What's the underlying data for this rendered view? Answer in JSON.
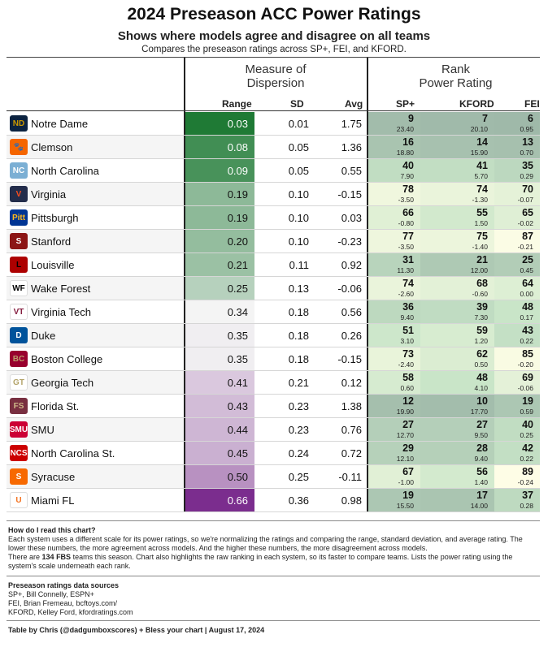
{
  "title": "2024 Preseason ACC Power Ratings",
  "subtitle": "Shows where models agree and disagree on all teams",
  "description": "Compares the preseason ratings across SP+, FEI, and KFORD.",
  "group_headers": {
    "dispersion_line1": "Measure of",
    "dispersion_line2": "Dispersion",
    "rank_line1": "Rank",
    "rank_line2": "Power Rating"
  },
  "columns": {
    "range": "Range",
    "sd": "SD",
    "avg": "Avg",
    "sp": "SP+",
    "kford": "KFORD",
    "fei": "FEI"
  },
  "chart_data": {
    "type": "table",
    "colors": {
      "range_low": "#1f7a35",
      "range_mid": "#f4f4f4",
      "range_high": "#7b2d8e",
      "rank_top": "#9fb9a9",
      "rank_bottom": "#fefde6"
    },
    "rows": [
      {
        "team": "Notre Dame",
        "logo": "ND",
        "logo_color": "#0c2340",
        "logo_text_color": "#c99700",
        "range": "0.03",
        "sd": "0.01",
        "avg": "1.75",
        "sp_rank": "9",
        "sp_rating": "23.40",
        "kford_rank": "7",
        "kford_rating": "20.10",
        "fei_rank": "6",
        "fei_rating": "0.95"
      },
      {
        "team": "Clemson",
        "logo": "🐾",
        "logo_color": "#f56600",
        "logo_text_color": "#ffffff",
        "range": "0.08",
        "sd": "0.05",
        "avg": "1.36",
        "sp_rank": "16",
        "sp_rating": "18.80",
        "kford_rank": "14",
        "kford_rating": "15.90",
        "fei_rank": "13",
        "fei_rating": "0.70"
      },
      {
        "team": "North Carolina",
        "logo": "NC",
        "logo_color": "#7bafd4",
        "logo_text_color": "#ffffff",
        "range": "0.09",
        "sd": "0.05",
        "avg": "0.55",
        "sp_rank": "40",
        "sp_rating": "7.90",
        "kford_rank": "41",
        "kford_rating": "5.70",
        "fei_rank": "35",
        "fei_rating": "0.29"
      },
      {
        "team": "Virginia",
        "logo": "V",
        "logo_color": "#232d4b",
        "logo_text_color": "#f84c1e",
        "range": "0.19",
        "sd": "0.10",
        "avg": "-0.15",
        "sp_rank": "78",
        "sp_rating": "-3.50",
        "kford_rank": "74",
        "kford_rating": "-1.30",
        "fei_rank": "70",
        "fei_rating": "-0.07"
      },
      {
        "team": "Pittsburgh",
        "logo": "Pitt",
        "logo_color": "#003594",
        "logo_text_color": "#ffb81c",
        "range": "0.19",
        "sd": "0.10",
        "avg": "0.03",
        "sp_rank": "66",
        "sp_rating": "-0.80",
        "kford_rank": "55",
        "kford_rating": "1.50",
        "fei_rank": "65",
        "fei_rating": "-0.02"
      },
      {
        "team": "Stanford",
        "logo": "S",
        "logo_color": "#8c1515",
        "logo_text_color": "#ffffff",
        "range": "0.20",
        "sd": "0.10",
        "avg": "-0.23",
        "sp_rank": "77",
        "sp_rating": "-3.50",
        "kford_rank": "75",
        "kford_rating": "-1.40",
        "fei_rank": "87",
        "fei_rating": "-0.21"
      },
      {
        "team": "Louisville",
        "logo": "L",
        "logo_color": "#ad0000",
        "logo_text_color": "#000000",
        "range": "0.21",
        "sd": "0.11",
        "avg": "0.92",
        "sp_rank": "31",
        "sp_rating": "11.30",
        "kford_rank": "21",
        "kford_rating": "12.00",
        "fei_rank": "25",
        "fei_rating": "0.45"
      },
      {
        "team": "Wake Forest",
        "logo": "WF",
        "logo_color": "#ffffff",
        "logo_text_color": "#000000",
        "range": "0.25",
        "sd": "0.13",
        "avg": "-0.06",
        "sp_rank": "74",
        "sp_rating": "-2.60",
        "kford_rank": "68",
        "kford_rating": "-0.60",
        "fei_rank": "64",
        "fei_rating": "0.00"
      },
      {
        "team": "Virginia Tech",
        "logo": "VT",
        "logo_color": "#ffffff",
        "logo_text_color": "#861f41",
        "range": "0.34",
        "sd": "0.18",
        "avg": "0.56",
        "sp_rank": "36",
        "sp_rating": "9.40",
        "kford_rank": "39",
        "kford_rating": "7.30",
        "fei_rank": "48",
        "fei_rating": "0.17"
      },
      {
        "team": "Duke",
        "logo": "D",
        "logo_color": "#00539b",
        "logo_text_color": "#ffffff",
        "range": "0.35",
        "sd": "0.18",
        "avg": "0.26",
        "sp_rank": "51",
        "sp_rating": "3.10",
        "kford_rank": "59",
        "kford_rating": "1.20",
        "fei_rank": "43",
        "fei_rating": "0.22"
      },
      {
        "team": "Boston College",
        "logo": "BC",
        "logo_color": "#98002e",
        "logo_text_color": "#bc9b6a",
        "range": "0.35",
        "sd": "0.18",
        "avg": "-0.15",
        "sp_rank": "73",
        "sp_rating": "-2.40",
        "kford_rank": "62",
        "kford_rating": "0.50",
        "fei_rank": "85",
        "fei_rating": "-0.20"
      },
      {
        "team": "Georgia Tech",
        "logo": "GT",
        "logo_color": "#ffffff",
        "logo_text_color": "#b3a369",
        "range": "0.41",
        "sd": "0.21",
        "avg": "0.12",
        "sp_rank": "58",
        "sp_rating": "0.60",
        "kford_rank": "48",
        "kford_rating": "4.10",
        "fei_rank": "69",
        "fei_rating": "-0.06"
      },
      {
        "team": "Florida St.",
        "logo": "FS",
        "logo_color": "#782f40",
        "logo_text_color": "#ceb888",
        "range": "0.43",
        "sd": "0.23",
        "avg": "1.38",
        "sp_rank": "12",
        "sp_rating": "19.90",
        "kford_rank": "10",
        "kford_rating": "17.70",
        "fei_rank": "19",
        "fei_rating": "0.59"
      },
      {
        "team": "SMU",
        "logo": "SMU",
        "logo_color": "#cc0035",
        "logo_text_color": "#ffffff",
        "range": "0.44",
        "sd": "0.23",
        "avg": "0.76",
        "sp_rank": "27",
        "sp_rating": "12.70",
        "kford_rank": "27",
        "kford_rating": "9.50",
        "fei_rank": "40",
        "fei_rating": "0.25"
      },
      {
        "team": "North Carolina St.",
        "logo": "NCS",
        "logo_color": "#cc0000",
        "logo_text_color": "#ffffff",
        "range": "0.45",
        "sd": "0.24",
        "avg": "0.72",
        "sp_rank": "29",
        "sp_rating": "12.10",
        "kford_rank": "28",
        "kford_rating": "9.40",
        "fei_rank": "42",
        "fei_rating": "0.22"
      },
      {
        "team": "Syracuse",
        "logo": "S",
        "logo_color": "#f76900",
        "logo_text_color": "#ffffff",
        "range": "0.50",
        "sd": "0.25",
        "avg": "-0.11",
        "sp_rank": "67",
        "sp_rating": "-1.00",
        "kford_rank": "56",
        "kford_rating": "1.40",
        "fei_rank": "89",
        "fei_rating": "-0.24"
      },
      {
        "team": "Miami FL",
        "logo": "U",
        "logo_color": "#ffffff",
        "logo_text_color": "#f47321",
        "range": "0.66",
        "sd": "0.36",
        "avg": "0.98",
        "sp_rank": "19",
        "sp_rating": "15.50",
        "kford_rank": "17",
        "kford_rating": "14.00",
        "fei_rank": "37",
        "fei_rating": "0.28"
      }
    ]
  },
  "notes": {
    "how_head": "How do I read this chart?",
    "how_text": "Each system uses a different scale for its power ratings, so we're normalizing the ratings and comparing the range, standard deviation, and average rating. The lower these numbers, the more agreement across models. And the higher these numbers, the more disagreement across models.",
    "there_are": "There are",
    "fbs_count": "134 FBS",
    "teams_text": "teams this season. Chart also highlights the raw ranking in each system, so its faster to compare teams. Lists the power rating using the system's scale underneath each rank.",
    "sources_head": "Preseason ratings data sources",
    "source_sp": "SP+, Bill Connelly, ESPN+",
    "source_fei": "FEI, Brian Fremeau, bcftoys.com/",
    "source_kford": "KFORD, Kelley Ford, kfordratings.com",
    "footer": "Table by Chris (@dadgumboxscores) + Bless your chart | August 17, 2024"
  }
}
